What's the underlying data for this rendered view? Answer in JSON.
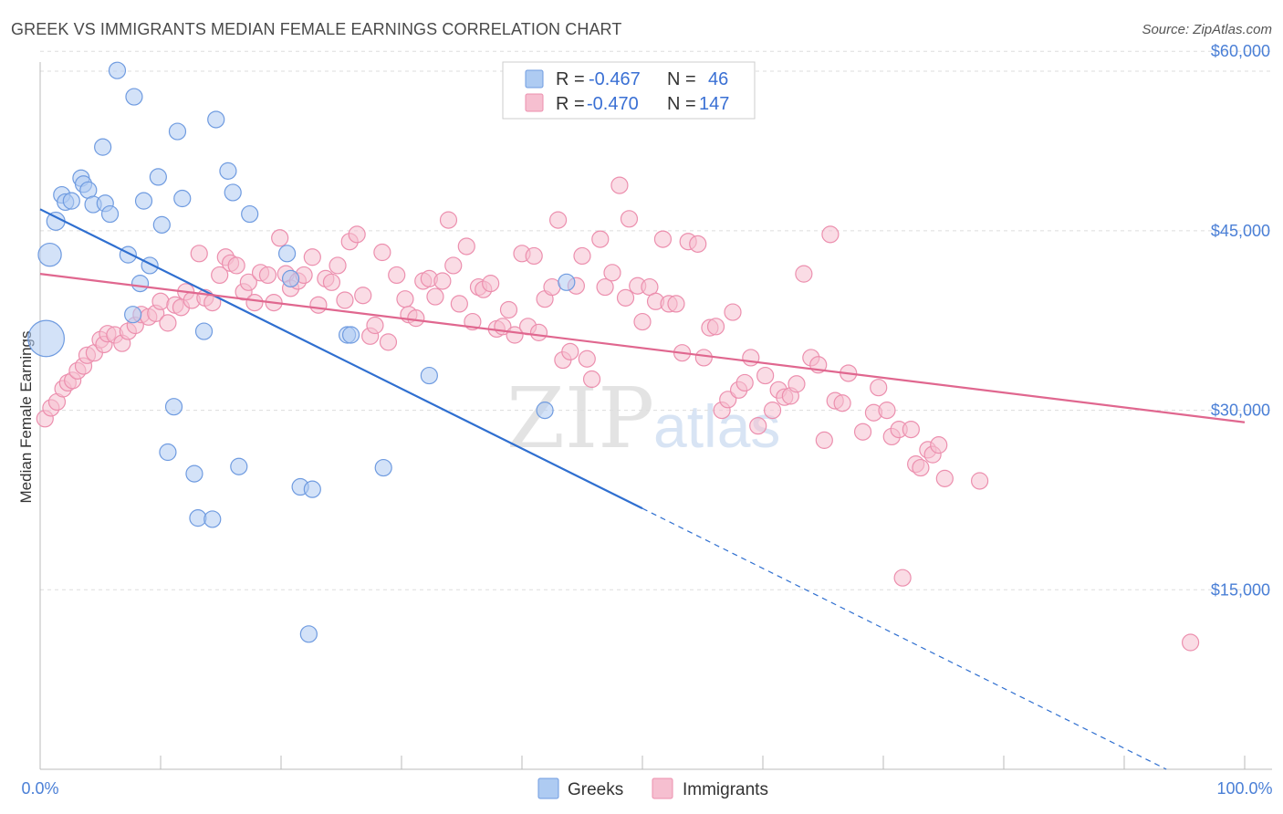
{
  "header": {
    "title": "GREEK VS IMMIGRANTS MEDIAN FEMALE EARNINGS CORRELATION CHART",
    "source": "Source: ZipAtlas.com"
  },
  "watermark": {
    "zip": "ZIP",
    "atlas": "atlas"
  },
  "colors": {
    "greeks_fill": "#aecbf2",
    "greeks_stroke": "#6f9be0",
    "greeks_line": "#2f6fd0",
    "immigrants_fill": "#f6bfd0",
    "immigrants_stroke": "#ec8fae",
    "immigrants_line": "#e0678f",
    "grid": "#dddddd",
    "tick_text": "#4a7fd6"
  },
  "legend": {
    "r_label": "R =",
    "n_label": "N =",
    "rows": [
      {
        "series": "Greeks",
        "r": "-0.467",
        "n": "46"
      },
      {
        "series": "Immigrants",
        "r": "-0.470",
        "n": "147"
      }
    ]
  },
  "chart_data": {
    "type": "scatter",
    "title": "GREEK VS IMMIGRANTS MEDIAN FEMALE EARNINGS CORRELATION CHART",
    "xlabel": "",
    "ylabel": "Median Female Earnings",
    "xlim": [
      0,
      100
    ],
    "ylim": [
      0,
      62000
    ],
    "x_tick_labels": [
      "0.0%",
      "100.0%"
    ],
    "y_ticks": [
      15000,
      30000,
      45000,
      60000
    ],
    "y_tick_labels": [
      "$15,000",
      "$30,000",
      "$45,000",
      "$60,000"
    ],
    "legend_bottom": [
      "Greeks",
      "Immigrants"
    ],
    "series": [
      {
        "name": "Greeks",
        "trend": {
          "x0": 0,
          "y0": 46800,
          "x1": 50,
          "y1": 21800,
          "dash_to_x": 93.5,
          "dash_to_y": 0
        },
        "points": [
          [
            0.5,
            36000,
            2.2
          ],
          [
            0.8,
            43000,
            1.4
          ],
          [
            1.3,
            45800,
            1.1
          ],
          [
            1.8,
            48000,
            1
          ],
          [
            2.1,
            47400,
            1
          ],
          [
            2.6,
            47500,
            1
          ],
          [
            3.4,
            49400,
            1
          ],
          [
            3.6,
            48900,
            1
          ],
          [
            4.0,
            48400,
            1
          ],
          [
            4.4,
            47200,
            1
          ],
          [
            5.2,
            52000,
            1
          ],
          [
            5.4,
            47300,
            1
          ],
          [
            5.8,
            46400,
            1
          ],
          [
            6.4,
            58400,
            1
          ],
          [
            7.3,
            43000,
            1
          ],
          [
            7.7,
            38000,
            1
          ],
          [
            7.8,
            56200,
            1
          ],
          [
            8.3,
            40600,
            1
          ],
          [
            8.6,
            47500,
            1
          ],
          [
            9.1,
            42100,
            1
          ],
          [
            9.8,
            49500,
            1
          ],
          [
            10.1,
            45500,
            1
          ],
          [
            10.6,
            26500,
            1
          ],
          [
            11.1,
            30300,
            1
          ],
          [
            11.4,
            53300,
            1
          ],
          [
            11.8,
            47700,
            1
          ],
          [
            12.8,
            24700,
            1
          ],
          [
            13.1,
            21000,
            1
          ],
          [
            13.6,
            36600,
            1
          ],
          [
            14.3,
            20900,
            1
          ],
          [
            14.6,
            54300,
            1
          ],
          [
            15.6,
            50000,
            1
          ],
          [
            16.0,
            48200,
            1
          ],
          [
            16.5,
            25300,
            1
          ],
          [
            17.4,
            46400,
            1
          ],
          [
            20.5,
            43100,
            1
          ],
          [
            20.8,
            41000,
            1
          ],
          [
            21.6,
            23600,
            1
          ],
          [
            22.6,
            23400,
            1
          ],
          [
            22.3,
            11300,
            1
          ],
          [
            25.5,
            36300,
            1
          ],
          [
            25.8,
            36300,
            1
          ],
          [
            28.5,
            25200,
            1
          ],
          [
            32.3,
            32900,
            1
          ],
          [
            41.9,
            30000,
            1
          ],
          [
            43.7,
            40700,
            1
          ]
        ]
      },
      {
        "name": "Immigrants",
        "trend": {
          "x0": 0,
          "y0": 41400,
          "x1": 100,
          "y1": 29000
        },
        "points": [
          [
            0.4,
            29300,
            1
          ],
          [
            0.9,
            30200,
            1
          ],
          [
            1.4,
            30700,
            1
          ],
          [
            1.9,
            31800,
            1
          ],
          [
            2.3,
            32300,
            1
          ],
          [
            2.7,
            32500,
            1
          ],
          [
            3.1,
            33300,
            1
          ],
          [
            3.6,
            33700,
            1
          ],
          [
            3.9,
            34600,
            1
          ],
          [
            4.5,
            34800,
            1
          ],
          [
            5.0,
            35900,
            1
          ],
          [
            5.3,
            35500,
            1
          ],
          [
            5.6,
            36400,
            1
          ],
          [
            6.2,
            36300,
            1
          ],
          [
            6.8,
            35600,
            1
          ],
          [
            7.3,
            36600,
            1
          ],
          [
            7.9,
            37100,
            1
          ],
          [
            8.4,
            38000,
            1
          ],
          [
            9.0,
            37800,
            1
          ],
          [
            9.6,
            38100,
            1
          ],
          [
            10.0,
            39100,
            1
          ],
          [
            10.6,
            37300,
            1
          ],
          [
            11.2,
            38800,
            1
          ],
          [
            11.7,
            38600,
            1
          ],
          [
            12.1,
            39900,
            1
          ],
          [
            12.6,
            39200,
            1
          ],
          [
            13.2,
            43100,
            1
          ],
          [
            13.7,
            39400,
            1
          ],
          [
            14.3,
            39000,
            1
          ],
          [
            14.9,
            41300,
            1
          ],
          [
            15.4,
            42800,
            1
          ],
          [
            15.8,
            42300,
            1
          ],
          [
            16.3,
            42100,
            1
          ],
          [
            16.9,
            39900,
            1
          ],
          [
            17.3,
            40700,
            1
          ],
          [
            17.8,
            39000,
            1
          ],
          [
            18.3,
            41500,
            1
          ],
          [
            18.9,
            41300,
            1
          ],
          [
            19.4,
            39000,
            1
          ],
          [
            19.9,
            44400,
            1
          ],
          [
            20.4,
            41400,
            1
          ],
          [
            20.8,
            40200,
            1
          ],
          [
            21.4,
            40800,
            1
          ],
          [
            21.9,
            41300,
            1
          ],
          [
            22.6,
            42800,
            1
          ],
          [
            23.1,
            38800,
            1
          ],
          [
            23.7,
            41000,
            1
          ],
          [
            24.2,
            40700,
            1
          ],
          [
            24.7,
            42100,
            1
          ],
          [
            25.3,
            39200,
            1
          ],
          [
            25.7,
            44100,
            1
          ],
          [
            26.3,
            44700,
            1
          ],
          [
            26.8,
            39600,
            1
          ],
          [
            27.4,
            36200,
            1
          ],
          [
            27.8,
            37100,
            1
          ],
          [
            28.4,
            43200,
            1
          ],
          [
            28.9,
            35700,
            1
          ],
          [
            29.6,
            41300,
            1
          ],
          [
            30.3,
            39300,
            1
          ],
          [
            30.6,
            38000,
            1
          ],
          [
            31.2,
            37700,
            1
          ],
          [
            31.8,
            40800,
            1
          ],
          [
            32.3,
            41000,
            1
          ],
          [
            32.8,
            39500,
            1
          ],
          [
            33.4,
            40800,
            1
          ],
          [
            33.9,
            45900,
            1
          ],
          [
            34.3,
            42100,
            1
          ],
          [
            34.8,
            38900,
            1
          ],
          [
            35.4,
            43700,
            1
          ],
          [
            35.9,
            37400,
            1
          ],
          [
            36.4,
            40300,
            1
          ],
          [
            36.8,
            40100,
            1
          ],
          [
            37.4,
            40600,
            1
          ],
          [
            37.9,
            36800,
            1
          ],
          [
            38.4,
            37000,
            1
          ],
          [
            38.9,
            38400,
            1
          ],
          [
            39.4,
            36300,
            1
          ],
          [
            40.0,
            43100,
            1
          ],
          [
            40.5,
            37000,
            1
          ],
          [
            41.0,
            42900,
            1
          ],
          [
            41.4,
            36500,
            1
          ],
          [
            41.9,
            39300,
            1
          ],
          [
            42.5,
            40300,
            1
          ],
          [
            43.0,
            45900,
            1
          ],
          [
            43.4,
            34200,
            1
          ],
          [
            44.0,
            34900,
            1
          ],
          [
            44.5,
            40400,
            1
          ],
          [
            45.0,
            42900,
            1
          ],
          [
            45.4,
            34300,
            1
          ],
          [
            45.8,
            32600,
            1
          ],
          [
            46.5,
            44300,
            1
          ],
          [
            46.9,
            40300,
            1
          ],
          [
            47.5,
            41500,
            1
          ],
          [
            48.1,
            48800,
            1
          ],
          [
            48.6,
            39400,
            1
          ],
          [
            48.9,
            46000,
            1
          ],
          [
            49.6,
            40400,
            1
          ],
          [
            50.0,
            37400,
            1
          ],
          [
            50.6,
            40300,
            1
          ],
          [
            51.1,
            39100,
            1
          ],
          [
            51.7,
            44300,
            1
          ],
          [
            52.2,
            38900,
            1
          ],
          [
            52.8,
            38900,
            1
          ],
          [
            53.3,
            34800,
            1
          ],
          [
            53.8,
            44100,
            1
          ],
          [
            54.6,
            43900,
            1
          ],
          [
            55.1,
            34400,
            1
          ],
          [
            55.6,
            36900,
            1
          ],
          [
            56.1,
            37000,
            1
          ],
          [
            56.6,
            30000,
            1
          ],
          [
            57.1,
            30900,
            1
          ],
          [
            57.5,
            38200,
            1
          ],
          [
            58.0,
            31700,
            1
          ],
          [
            58.5,
            32300,
            1
          ],
          [
            59.0,
            34400,
            1
          ],
          [
            59.6,
            28700,
            1
          ],
          [
            60.2,
            32900,
            1
          ],
          [
            60.8,
            30000,
            1
          ],
          [
            61.3,
            31700,
            1
          ],
          [
            61.8,
            31100,
            1
          ],
          [
            62.3,
            31200,
            1
          ],
          [
            62.8,
            32200,
            1
          ],
          [
            63.4,
            41400,
            1
          ],
          [
            64.0,
            34400,
            1
          ],
          [
            64.6,
            33800,
            1
          ],
          [
            65.1,
            27500,
            1
          ],
          [
            65.6,
            44700,
            1
          ],
          [
            66.0,
            30800,
            1
          ],
          [
            66.6,
            30600,
            1
          ],
          [
            67.1,
            33100,
            1
          ],
          [
            68.3,
            28200,
            1
          ],
          [
            69.2,
            29800,
            1
          ],
          [
            69.6,
            31900,
            1
          ],
          [
            70.3,
            30000,
            1
          ],
          [
            70.7,
            27800,
            1
          ],
          [
            71.3,
            28400,
            1
          ],
          [
            71.6,
            16000,
            1
          ],
          [
            72.3,
            28400,
            1
          ],
          [
            72.7,
            25500,
            1
          ],
          [
            73.1,
            25200,
            1
          ],
          [
            73.7,
            26700,
            1
          ],
          [
            74.1,
            26300,
            1
          ],
          [
            74.6,
            27100,
            1
          ],
          [
            75.1,
            24300,
            1
          ],
          [
            78.0,
            24100,
            1
          ],
          [
            95.5,
            10600,
            1
          ]
        ]
      }
    ]
  }
}
